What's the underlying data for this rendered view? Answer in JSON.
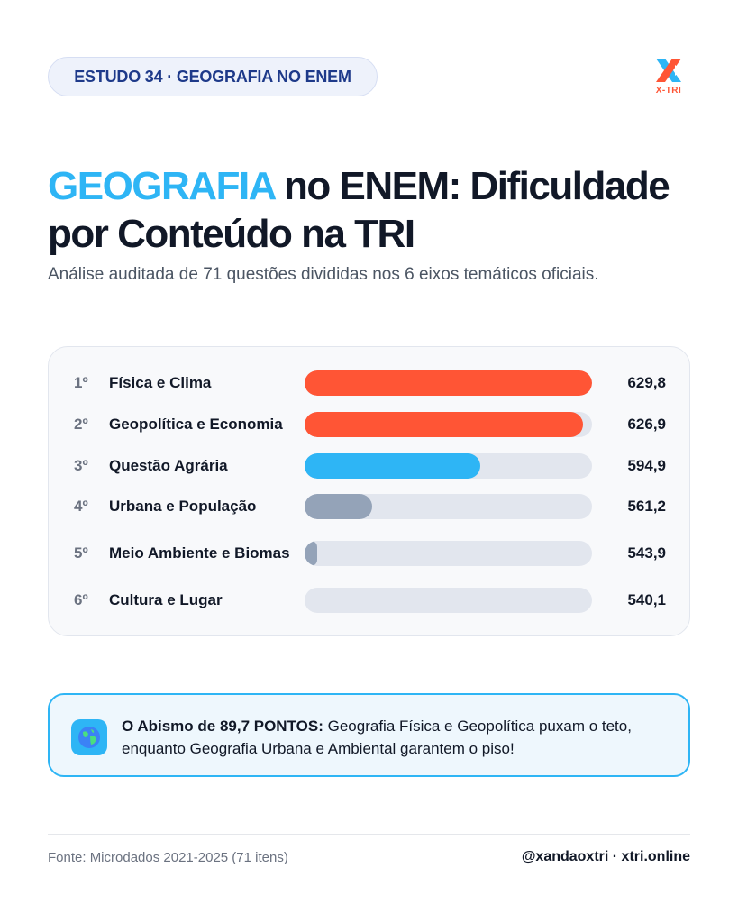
{
  "badge": "ESTUDO 34 · GEOGRAFIA NO ENEM",
  "logo_text": "X-TRI",
  "title": {
    "accent": "GEOGRAFIA",
    "rest_line1": " no ENEM: Dificuldade",
    "line2": "por Conteúdo na TRI"
  },
  "subtitle": "Análise auditada de 71 questões divididas nos 6 eixos temáticos oficiais.",
  "colors": {
    "accent_blue": "#2eb5f5",
    "bar_red": "#ff5535",
    "bar_blue": "#2eb5f5",
    "bar_gray": "#94a3b8",
    "track": "#e2e6ee"
  },
  "chart_data": {
    "type": "bar",
    "orientation": "horizontal",
    "categories": [
      "Física e Clima",
      "Geopolítica e Economia",
      "Questão Agrária",
      "Urbana e População",
      "Meio Ambiente e Biomas",
      "Cultura e Lugar"
    ],
    "ranks": [
      "1º",
      "2º",
      "3º",
      "4º",
      "5º",
      "6º"
    ],
    "values": [
      629.8,
      626.9,
      594.9,
      561.2,
      543.9,
      540.1
    ],
    "value_labels": [
      "629,8",
      "626,9",
      "594,9",
      "561,2",
      "543,9",
      "540,1"
    ],
    "bar_colors": [
      "#ff5535",
      "#ff5535",
      "#2eb5f5",
      "#94a3b8",
      "#94a3b8",
      "#94a3b8"
    ],
    "xlim": [
      540.1,
      629.8
    ],
    "legend": "none",
    "grid": false
  },
  "callout": {
    "icon": "globe-icon",
    "bold": "O Abismo de 89,7 PONTOS:",
    "text": " Geografia Física e Geopolítica puxam o teto, enquanto Geografia Urbana e Ambiental garantem o piso!"
  },
  "footer": {
    "source": "Fonte: Microdados 2021-2025 (71 itens)",
    "handle": "@xandaoxtri · xtri.online"
  }
}
